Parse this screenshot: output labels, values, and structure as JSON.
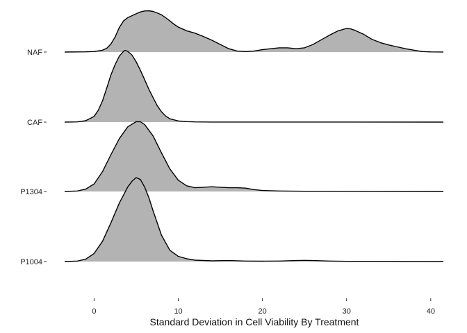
{
  "chart_data": {
    "type": "ridgeline",
    "title": "",
    "xlabel": "Standard Deviation in Cell Viability By Treatment",
    "ylabel": "",
    "xlim": [
      -3.5,
      41.5
    ],
    "x_ticks": [
      0,
      10,
      20,
      30,
      40
    ],
    "categories": [
      "NAF",
      "CAF",
      "P1304",
      "P1004"
    ],
    "fill_color": "#b3b3b3",
    "line_color": "#000000",
    "grid": false,
    "legend": "none",
    "series": [
      {
        "name": "NAF",
        "points": [
          [
            -3.5,
            0
          ],
          [
            -1,
            0.005
          ],
          [
            0,
            0.01
          ],
          [
            1,
            0.04
          ],
          [
            1.5,
            0.08
          ],
          [
            2,
            0.17
          ],
          [
            2.5,
            0.32
          ],
          [
            3,
            0.52
          ],
          [
            3.5,
            0.66
          ],
          [
            4,
            0.73
          ],
          [
            4.5,
            0.77
          ],
          [
            5,
            0.81
          ],
          [
            5.5,
            0.85
          ],
          [
            6,
            0.87
          ],
          [
            6.5,
            0.875
          ],
          [
            7,
            0.86
          ],
          [
            7.5,
            0.83
          ],
          [
            8,
            0.79
          ],
          [
            8.5,
            0.73
          ],
          [
            9,
            0.66
          ],
          [
            9.5,
            0.59
          ],
          [
            10,
            0.53
          ],
          [
            10.5,
            0.49
          ],
          [
            11,
            0.45
          ],
          [
            12,
            0.4
          ],
          [
            13,
            0.33
          ],
          [
            14,
            0.25
          ],
          [
            15,
            0.16
          ],
          [
            16,
            0.07
          ],
          [
            17,
            0.02
          ],
          [
            18,
            0.01
          ],
          [
            19,
            0.02
          ],
          [
            20,
            0.05
          ],
          [
            21,
            0.07
          ],
          [
            22,
            0.09
          ],
          [
            23,
            0.09
          ],
          [
            24,
            0.07
          ],
          [
            25,
            0.09
          ],
          [
            26,
            0.16
          ],
          [
            27,
            0.26
          ],
          [
            28,
            0.36
          ],
          [
            29,
            0.45
          ],
          [
            30,
            0.5
          ],
          [
            30.5,
            0.49
          ],
          [
            31,
            0.46
          ],
          [
            32,
            0.38
          ],
          [
            33,
            0.27
          ],
          [
            34,
            0.2
          ],
          [
            35,
            0.15
          ],
          [
            36,
            0.11
          ],
          [
            37,
            0.07
          ],
          [
            38,
            0.04
          ],
          [
            39,
            0.01
          ],
          [
            40,
            0.003
          ],
          [
            41.5,
            0
          ]
        ]
      },
      {
        "name": "CAF",
        "points": [
          [
            -3.5,
            0
          ],
          [
            -2,
            0.005
          ],
          [
            -1,
            0.03
          ],
          [
            0,
            0.12
          ],
          [
            0.5,
            0.25
          ],
          [
            1,
            0.45
          ],
          [
            1.5,
            0.72
          ],
          [
            2,
            1.0
          ],
          [
            2.5,
            1.22
          ],
          [
            3,
            1.4
          ],
          [
            3.5,
            1.5
          ],
          [
            3.7,
            1.52
          ],
          [
            4,
            1.5
          ],
          [
            4.5,
            1.42
          ],
          [
            5,
            1.28
          ],
          [
            5.5,
            1.1
          ],
          [
            6,
            0.9
          ],
          [
            6.5,
            0.7
          ],
          [
            7,
            0.52
          ],
          [
            7.5,
            0.35
          ],
          [
            8,
            0.22
          ],
          [
            8.5,
            0.13
          ],
          [
            9,
            0.07
          ],
          [
            10,
            0.025
          ],
          [
            11,
            0.01
          ],
          [
            12,
            0.004
          ],
          [
            14,
            0.001
          ],
          [
            41.5,
            0
          ]
        ]
      },
      {
        "name": "P1304",
        "points": [
          [
            -3.5,
            0
          ],
          [
            -2,
            0.01
          ],
          [
            -1,
            0.05
          ],
          [
            0,
            0.16
          ],
          [
            1,
            0.42
          ],
          [
            2,
            0.78
          ],
          [
            3,
            1.12
          ],
          [
            4,
            1.37
          ],
          [
            5,
            1.48
          ],
          [
            5.5,
            1.48
          ],
          [
            6,
            1.42
          ],
          [
            7,
            1.18
          ],
          [
            8,
            0.82
          ],
          [
            9,
            0.48
          ],
          [
            10,
            0.24
          ],
          [
            11,
            0.12
          ],
          [
            12,
            0.08
          ],
          [
            13,
            0.09
          ],
          [
            14,
            0.1
          ],
          [
            15,
            0.09
          ],
          [
            16,
            0.08
          ],
          [
            17,
            0.08
          ],
          [
            18,
            0.07
          ],
          [
            19,
            0.04
          ],
          [
            20,
            0.02
          ],
          [
            22,
            0.01
          ],
          [
            25,
            0.005
          ],
          [
            41.5,
            0
          ]
        ]
      },
      {
        "name": "P1004",
        "points": [
          [
            -3.5,
            0
          ],
          [
            -2,
            0.01
          ],
          [
            -1,
            0.05
          ],
          [
            0,
            0.17
          ],
          [
            1,
            0.43
          ],
          [
            2,
            0.82
          ],
          [
            3,
            1.24
          ],
          [
            4,
            1.58
          ],
          [
            4.5,
            1.7
          ],
          [
            5,
            1.78
          ],
          [
            5.5,
            1.74
          ],
          [
            6,
            1.58
          ],
          [
            6.5,
            1.36
          ],
          [
            7,
            1.08
          ],
          [
            8,
            0.56
          ],
          [
            9,
            0.24
          ],
          [
            10,
            0.11
          ],
          [
            11,
            0.06
          ],
          [
            12,
            0.03
          ],
          [
            14,
            0.015
          ],
          [
            16,
            0.02
          ],
          [
            18,
            0.01
          ],
          [
            20,
            0.008
          ],
          [
            22,
            0.01
          ],
          [
            24,
            0.02
          ],
          [
            25,
            0.025
          ],
          [
            26,
            0.02
          ],
          [
            28,
            0.01
          ],
          [
            30,
            0.005
          ],
          [
            41.5,
            0
          ]
        ]
      }
    ]
  }
}
